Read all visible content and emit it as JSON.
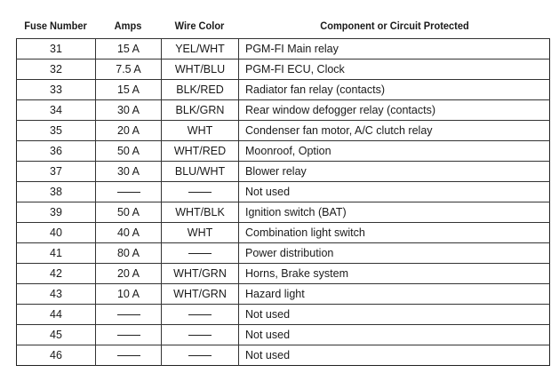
{
  "headers": {
    "fuse_number": "Fuse Number",
    "amps": "Amps",
    "wire_color": "Wire Color",
    "component": "Component or Circuit Protected"
  },
  "rows": [
    {
      "fuse": "31",
      "amps": "15 A",
      "wire": "YEL/WHT",
      "component": "PGM-FI Main relay"
    },
    {
      "fuse": "32",
      "amps": "7.5 A",
      "wire": "WHT/BLU",
      "component": "PGM-FI ECU, Clock"
    },
    {
      "fuse": "33",
      "amps": "15 A",
      "wire": "BLK/RED",
      "component": "Radiator fan relay (contacts)"
    },
    {
      "fuse": "34",
      "amps": "30 A",
      "wire": "BLK/GRN",
      "component": "Rear window defogger relay (contacts)"
    },
    {
      "fuse": "35",
      "amps": "20 A",
      "wire": "WHT",
      "component": "Condenser fan motor, A/C clutch relay"
    },
    {
      "fuse": "36",
      "amps": "50 A",
      "wire": "WHT/RED",
      "component": "Moonroof, Option"
    },
    {
      "fuse": "37",
      "amps": "30 A",
      "wire": "BLU/WHT",
      "component": "Blower relay"
    },
    {
      "fuse": "38",
      "amps": "—",
      "wire": "—",
      "component": "Not used"
    },
    {
      "fuse": "39",
      "amps": "50 A",
      "wire": "WHT/BLK",
      "component": "Ignition switch (BAT)"
    },
    {
      "fuse": "40",
      "amps": "40 A",
      "wire": "WHT",
      "component": "Combination light switch"
    },
    {
      "fuse": "41",
      "amps": "80 A",
      "wire": "—",
      "component": "Power distribution"
    },
    {
      "fuse": "42",
      "amps": "20 A",
      "wire": "WHT/GRN",
      "component": "Horns, Brake system"
    },
    {
      "fuse": "43",
      "amps": "10 A",
      "wire": "WHT/GRN",
      "component": "Hazard light"
    },
    {
      "fuse": "44",
      "amps": "—",
      "wire": "—",
      "component": "Not used"
    },
    {
      "fuse": "45",
      "amps": "—",
      "wire": "—",
      "component": "Not used"
    },
    {
      "fuse": "46",
      "amps": "—",
      "wire": "—",
      "component": "Not used"
    }
  ]
}
